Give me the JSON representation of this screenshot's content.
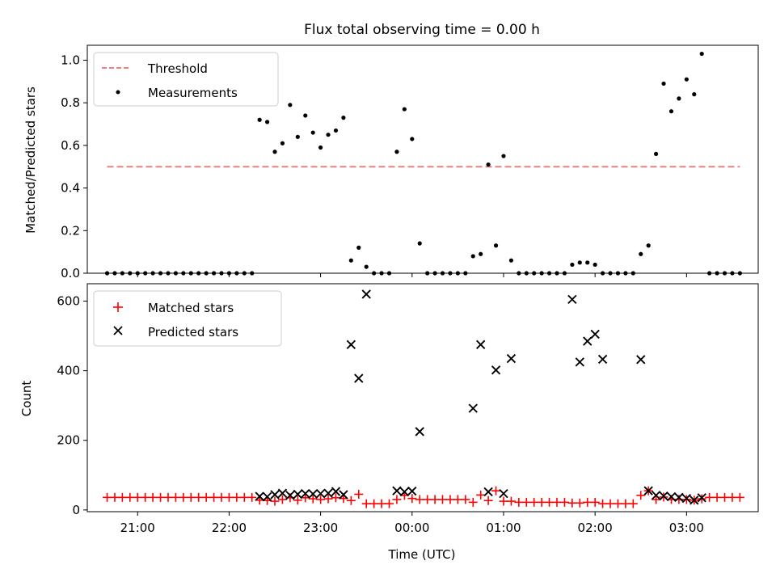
{
  "title": "Flux total observing time = 0.00 h",
  "chart_data": [
    {
      "type": "line+scatter",
      "ylabel": "Matched/Predicted stars",
      "xlabel": "",
      "xlim": [
        "20:27",
        "03:47"
      ],
      "ylim": [
        0,
        1.07
      ],
      "yticks": [
        0.0,
        0.2,
        0.4,
        0.6,
        0.8,
        1.0
      ],
      "ytick_labels": [
        "0.0",
        "0.2",
        "0.4",
        "0.6",
        "0.8",
        "1.0"
      ],
      "xticks": [
        "21:00",
        "22:00",
        "23:00",
        "00:00",
        "01:00",
        "02:00",
        "03:00"
      ],
      "legend_position": "upper-left",
      "series": [
        {
          "name": "Threshold",
          "style": "dashed-line",
          "color": "#f08080",
          "x": [
            "20:40",
            "03:35"
          ],
          "y": [
            0.5,
            0.5
          ]
        },
        {
          "name": "Measurements",
          "style": "dot",
          "color": "#000000",
          "x": [
            "20:40",
            "20:45",
            "20:50",
            "20:55",
            "21:00",
            "21:05",
            "21:10",
            "21:15",
            "21:20",
            "21:25",
            "21:30",
            "21:35",
            "21:40",
            "21:45",
            "21:50",
            "21:55",
            "22:00",
            "22:05",
            "22:10",
            "22:15",
            "22:20",
            "22:25",
            "22:30",
            "22:35",
            "22:40",
            "22:45",
            "22:50",
            "22:55",
            "23:00",
            "23:05",
            "23:10",
            "23:15",
            "23:20",
            "23:25",
            "23:30",
            "23:35",
            "23:40",
            "23:45",
            "23:50",
            "23:55",
            "00:00",
            "00:05",
            "00:10",
            "00:15",
            "00:20",
            "00:25",
            "00:30",
            "00:35",
            "00:40",
            "00:45",
            "00:50",
            "00:55",
            "01:00",
            "01:05",
            "01:10",
            "01:15",
            "01:20",
            "01:25",
            "01:30",
            "01:35",
            "01:40",
            "01:45",
            "01:50",
            "01:55",
            "02:00",
            "02:05",
            "02:10",
            "02:15",
            "02:20",
            "02:25",
            "02:30",
            "02:35",
            "02:40",
            "02:45",
            "02:50",
            "02:55",
            "03:00",
            "03:05",
            "03:10",
            "03:15",
            "03:20",
            "03:25",
            "03:30",
            "03:35"
          ],
          "y": [
            0,
            0,
            0,
            0,
            0,
            0,
            0,
            0,
            0,
            0,
            0,
            0,
            0,
            0,
            0,
            0,
            0,
            0,
            0,
            0,
            0.72,
            0.71,
            0.57,
            0.61,
            0.79,
            0.64,
            0.74,
            0.66,
            0.59,
            0.65,
            0.67,
            0.73,
            0.06,
            0.12,
            0.03,
            0,
            0,
            0,
            0.57,
            0.77,
            0.63,
            0.14,
            0,
            0,
            0,
            0,
            0,
            0,
            0.08,
            0.09,
            0.51,
            0.13,
            0.55,
            0.06,
            0,
            0,
            0,
            0,
            0,
            0,
            0,
            0.04,
            0.05,
            0.05,
            0.04,
            0,
            0,
            0,
            0,
            0,
            0.09,
            0.13,
            0.56,
            0.89,
            0.76,
            0.82,
            0.91,
            0.84,
            1.03,
            0,
            0,
            0,
            0,
            0
          ]
        }
      ]
    },
    {
      "type": "scatter",
      "ylabel": "Count",
      "xlabel": "Time (UTC)",
      "xlim": [
        "20:27",
        "03:47"
      ],
      "ylim": [
        -5,
        650
      ],
      "yticks": [
        0,
        200,
        400,
        600
      ],
      "ytick_labels": [
        "0",
        "200",
        "400",
        "600"
      ],
      "xticks": [
        "21:00",
        "22:00",
        "23:00",
        "00:00",
        "01:00",
        "02:00",
        "03:00"
      ],
      "legend_position": "upper-left",
      "series": [
        {
          "name": "Matched stars",
          "marker": "plus",
          "color": "#ff0000",
          "x": [
            "20:40",
            "20:45",
            "20:50",
            "20:55",
            "21:00",
            "21:05",
            "21:10",
            "21:15",
            "21:20",
            "21:25",
            "21:30",
            "21:35",
            "21:40",
            "21:45",
            "21:50",
            "21:55",
            "22:00",
            "22:05",
            "22:10",
            "22:15",
            "22:20",
            "22:25",
            "22:30",
            "22:35",
            "22:40",
            "22:45",
            "22:50",
            "22:55",
            "23:00",
            "23:05",
            "23:10",
            "23:15",
            "23:20",
            "23:25",
            "23:30",
            "23:35",
            "23:40",
            "23:45",
            "23:50",
            "23:55",
            "00:00",
            "00:05",
            "00:10",
            "00:15",
            "00:20",
            "00:25",
            "00:30",
            "00:35",
            "00:40",
            "00:45",
            "00:50",
            "00:55",
            "01:00",
            "01:05",
            "01:10",
            "01:15",
            "01:20",
            "01:25",
            "01:30",
            "01:35",
            "01:40",
            "01:45",
            "01:50",
            "01:55",
            "02:00",
            "02:05",
            "02:10",
            "02:15",
            "02:20",
            "02:25",
            "02:30",
            "02:35",
            "02:40",
            "02:45",
            "02:50",
            "02:55",
            "03:00",
            "03:05",
            "03:10",
            "03:15",
            "03:20",
            "03:25",
            "03:30",
            "03:35"
          ],
          "y": [
            36,
            36,
            36,
            36,
            36,
            36,
            36,
            36,
            36,
            36,
            36,
            36,
            36,
            36,
            36,
            36,
            36,
            36,
            36,
            36,
            28,
            27,
            25,
            30,
            35,
            28,
            35,
            32,
            30,
            32,
            35,
            33,
            27,
            45,
            18,
            18,
            18,
            18,
            30,
            42,
            33,
            30,
            30,
            30,
            30,
            30,
            30,
            30,
            22,
            43,
            27,
            55,
            25,
            25,
            22,
            22,
            22,
            22,
            22,
            22,
            22,
            20,
            20,
            22,
            22,
            18,
            18,
            18,
            18,
            18,
            42,
            55,
            30,
            37,
            30,
            30,
            30,
            28,
            32,
            36,
            36,
            36,
            36,
            36
          ]
        },
        {
          "name": "Predicted stars",
          "marker": "x",
          "color": "#000000",
          "x": [
            "22:20",
            "22:25",
            "22:30",
            "22:35",
            "22:40",
            "22:45",
            "22:50",
            "22:55",
            "23:00",
            "23:05",
            "23:10",
            "23:15",
            "23:20",
            "23:25",
            "23:30",
            "23:50",
            "23:55",
            "00:00",
            "00:05",
            "00:40",
            "00:45",
            "00:50",
            "00:55",
            "01:00",
            "01:05",
            "01:45",
            "01:50",
            "01:55",
            "02:00",
            "02:05",
            "02:30",
            "02:35",
            "02:40",
            "02:45",
            "02:50",
            "02:55",
            "03:00",
            "03:05",
            "03:10"
          ],
          "y": [
            39,
            38,
            44,
            48,
            42,
            45,
            47,
            46,
            47,
            48,
            53,
            44,
            475,
            378,
            620,
            55,
            52,
            54,
            225,
            292,
            475,
            52,
            402,
            47,
            435,
            605,
            425,
            485,
            505,
            433,
            432,
            55,
            42,
            40,
            38,
            36,
            33,
            28,
            35
          ]
        }
      ]
    }
  ]
}
